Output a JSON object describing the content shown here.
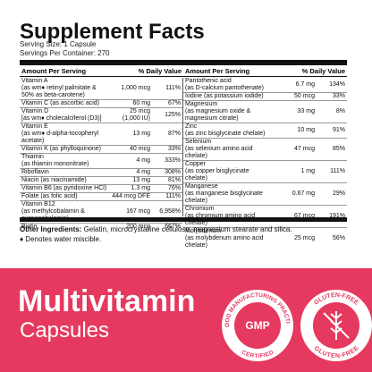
{
  "header": {
    "title": "Supplement Facts",
    "serving_size": "Serving Size: 1 Capsule",
    "servings_per_container": "Servings Per Container: 270"
  },
  "table": {
    "headers": [
      "Amount Per Serving",
      "% Daily Value",
      "Amount Per Serving",
      "% Daily Value"
    ],
    "left_rows": [
      {
        "name": "Vitamin A",
        "note": "(as wm♦ retinyl palmitate & 50% as beta-carotene)",
        "amount": "1,000 mcg",
        "dv": "111%"
      },
      {
        "name": "Vitamin C (as ascorbic acid)",
        "amount": "60 mg",
        "dv": "67%"
      },
      {
        "name": "Vitamin D",
        "note": "[as wm♦ cholecalciferol (D3)]",
        "amount": "25 mcg",
        "amount_note": "(1,000 IU)",
        "dv": "125%"
      },
      {
        "name": "Vitamin E",
        "note": "(as wm♦ d-alpha-tocopheryl acetate)",
        "amount": "13 mg",
        "dv": "87%"
      },
      {
        "name": "Vitamin K (as phylloquinone)",
        "amount": "40 mcg",
        "dv": "33%"
      },
      {
        "name": "Thiamin",
        "note": "(as thiamin mononitrate)",
        "amount": "4 mg",
        "dv": "333%"
      },
      {
        "name": "Riboflavin",
        "amount": "4 mg",
        "dv": "308%"
      },
      {
        "name": "Niacin (as niacinamide)",
        "amount": "13 mg",
        "dv": "81%"
      },
      {
        "name": "Vitamin B6 (as pyridoxine HCl)",
        "amount": "1.3 mg",
        "dv": "76%"
      },
      {
        "name": "Folate (as folic acid)",
        "amount": "444 mcg DFE",
        "dv": "111%"
      },
      {
        "name": "Vitamin B12",
        "note": "(as methylcobalamin & cyanocobalamin)",
        "amount": "167 mcg",
        "dv": "6,958%"
      },
      {
        "name": "Biotin",
        "amount": "200 mcg",
        "dv": "667%"
      }
    ],
    "right_rows": [
      {
        "name": "Pantothenic acid",
        "note": "(as D-calcium pantothenate)",
        "amount": "6.7 mg",
        "dv": "134%"
      },
      {
        "name": "Iodine (as potassium iodide)",
        "amount": "50 mcg",
        "dv": "33%"
      },
      {
        "name": "Magnesium",
        "note": "(as magnesium oxide & magnesium citrate)",
        "amount": "33 mg",
        "dv": "8%"
      },
      {
        "name": "Zinc",
        "note": "(as zinc bisglycinate chelate)",
        "amount": "10 mg",
        "dv": "91%"
      },
      {
        "name": "Selenium",
        "note": "(as selenium amino acid chelate)",
        "amount": "47 mcg",
        "dv": "85%"
      },
      {
        "name": "Copper",
        "note": "(as copper bisglycinate chelate)",
        "amount": "1 mg",
        "dv": "111%"
      },
      {
        "name": "Manganese",
        "note": "(as manganese bisglycinate chelate)",
        "amount": "0.67 mg",
        "dv": "29%"
      },
      {
        "name": "Chromium",
        "note": "(as chromium amino acid chelate)",
        "amount": "67 mcg",
        "dv": "191%"
      },
      {
        "name": "Molybdenum",
        "note": "(as molybdenum amino acid chelate)",
        "amount": "25 mcg",
        "dv": "56%"
      }
    ]
  },
  "footer": {
    "other_label": "Other Ingredients:",
    "other_text": "Gelatin, microcrystalline cellulose, magnesium stearate and silica.",
    "note": "♦ Denotes water miscible."
  },
  "product": {
    "name": "Multivitamin",
    "form": "Capsules"
  },
  "badges": [
    {
      "top": "GOOD MANUFACTURING PRACTICE",
      "center": "GMP",
      "bottom": "CERTIFIED"
    },
    {
      "top": "GLUTEN-FREE",
      "bottom": "GLUTEN-FREE"
    }
  ]
}
